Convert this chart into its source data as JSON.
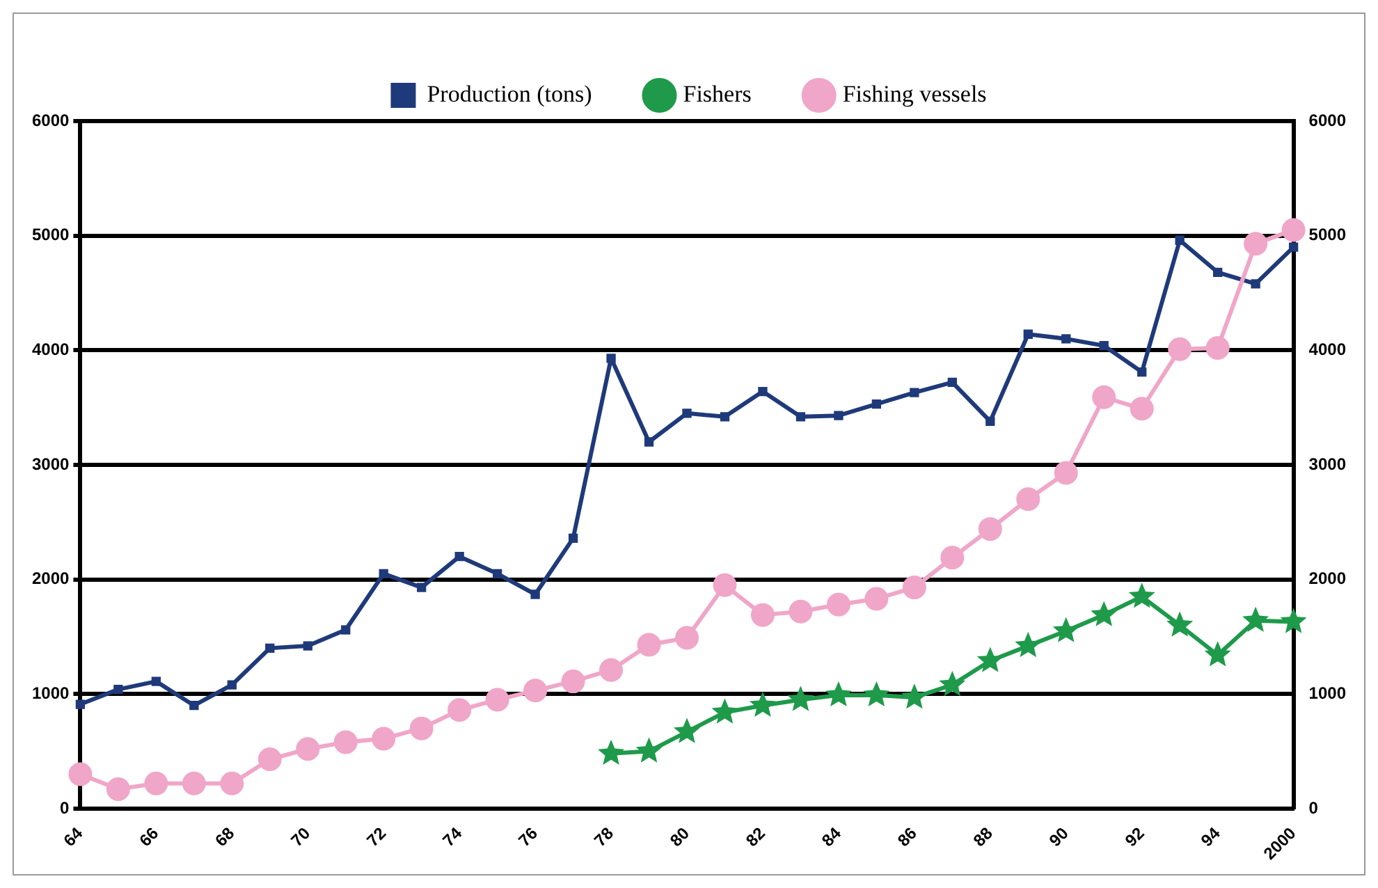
{
  "chart_data": {
    "type": "line",
    "categories": [
      "64",
      null,
      "66",
      null,
      "68",
      null,
      "70",
      null,
      "72",
      null,
      "74",
      null,
      "76",
      null,
      "78",
      null,
      "80",
      null,
      "82",
      null,
      "84",
      null,
      "86",
      null,
      "88",
      null,
      "90",
      null,
      "92",
      null,
      "94",
      null,
      "2000"
    ],
    "series": [
      {
        "name": "Production (tons)",
        "color": "#1f3a7a",
        "marker": "square",
        "values": [
          910,
          1040,
          1110,
          900,
          1080,
          1400,
          1420,
          1560,
          2050,
          1930,
          2200,
          2050,
          1870,
          2360,
          3930,
          3200,
          3450,
          3420,
          3640,
          3420,
          3430,
          3530,
          3630,
          3720,
          3380,
          4140,
          4100,
          4040,
          3810,
          4960,
          4680,
          4580,
          4900
        ]
      },
      {
        "name": "Fishers",
        "color": "#1e9a4a",
        "marker": "star",
        "values": [
          null,
          null,
          null,
          null,
          null,
          null,
          null,
          null,
          null,
          null,
          null,
          null,
          null,
          null,
          480,
          500,
          670,
          840,
          900,
          950,
          990,
          990,
          970,
          1080,
          1290,
          1420,
          1550,
          1690,
          1850,
          1600,
          1340,
          1640,
          1630
        ]
      },
      {
        "name": "Fishing vessels",
        "color": "#f0a6c8",
        "marker": "circle",
        "values": [
          300,
          170,
          220,
          220,
          220,
          430,
          520,
          580,
          610,
          700,
          860,
          950,
          1030,
          1110,
          1210,
          1430,
          1490,
          1950,
          1690,
          1720,
          1780,
          1830,
          1930,
          2190,
          2440,
          2700,
          2930,
          3590,
          3490,
          4010,
          4020,
          4930,
          5050
        ]
      }
    ],
    "ylim": [
      0,
      6000
    ],
    "yticks": [
      0,
      1000,
      2000,
      3000,
      4000,
      5000,
      6000
    ],
    "y2lim": [
      0,
      6000
    ],
    "y2ticks": [
      0,
      1000,
      2000,
      3000,
      4000,
      5000,
      6000
    ],
    "grid": "y",
    "legend": "top"
  }
}
